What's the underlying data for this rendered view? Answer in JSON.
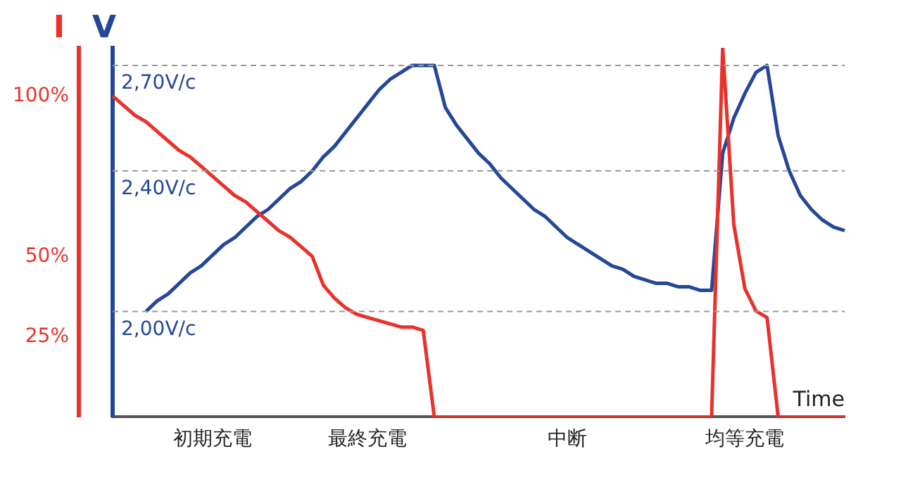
{
  "chart_data": {
    "type": "line",
    "xlabel": "Time",
    "ylabel": "I",
    "y2label": "V",
    "categories": [
      null,
      null,
      null,
      null,
      null,
      null,
      null,
      null,
      null,
      "初期充電",
      null,
      null,
      null,
      null,
      null,
      null,
      null,
      null,
      null,
      null,
      null,
      null,
      null,
      "最終充電",
      null,
      null,
      null,
      null,
      null,
      null,
      null,
      null,
      null,
      null,
      null,
      null,
      null,
      null,
      null,
      null,
      null,
      "中断",
      null,
      null,
      null,
      null,
      null,
      null,
      null,
      null,
      null,
      null,
      null,
      null,
      null,
      null,
      null,
      "均等充電",
      null,
      null,
      null,
      null,
      null,
      null,
      null,
      null,
      null
    ],
    "series": [
      {
        "color": "#e8322a",
        "values": [
          100,
          97,
          94,
          92,
          89,
          86,
          83,
          81,
          78,
          75,
          72,
          69,
          67,
          64,
          61,
          58,
          56,
          53,
          50,
          41,
          37,
          34,
          32,
          31,
          30,
          29,
          28,
          28,
          27,
          0,
          0,
          0,
          0,
          0,
          0,
          0,
          0,
          0,
          0,
          0,
          0,
          0,
          0,
          0,
          0,
          0,
          0,
          0,
          0,
          0,
          0,
          0,
          0,
          0,
          0,
          115,
          60,
          40,
          33,
          31,
          0,
          0,
          0,
          0,
          0,
          0,
          0
        ]
      },
      {
        "color": "#25479a",
        "axis": "y2",
        "values": [
          null,
          null,
          null,
          2.0,
          2.03,
          2.05,
          2.08,
          2.11,
          2.13,
          2.16,
          2.19,
          2.21,
          2.24,
          2.27,
          2.29,
          2.32,
          2.35,
          2.37,
          2.4,
          2.44,
          2.47,
          2.51,
          2.55,
          2.59,
          2.63,
          2.66,
          2.68,
          2.7,
          2.7,
          2.7,
          2.58,
          2.53,
          2.49,
          2.45,
          2.42,
          2.38,
          2.35,
          2.32,
          2.29,
          2.27,
          2.24,
          2.21,
          2.19,
          2.17,
          2.15,
          2.13,
          2.12,
          2.1,
          2.09,
          2.08,
          2.08,
          2.07,
          2.07,
          2.06,
          2.06,
          2.45,
          2.55,
          2.62,
          2.68,
          2.7,
          2.5,
          2.4,
          2.33,
          2.29,
          2.26,
          2.24,
          2.23
        ]
      }
    ],
    "ylim": [
      0,
      115
    ],
    "yticks": [
      {
        "value": 25,
        "label": "25%"
      },
      {
        "value": 50,
        "label": "50%"
      },
      {
        "value": 100,
        "label": "100%"
      }
    ],
    "y2lim": [
      1.7,
      2.75
    ],
    "y2ticks": [
      {
        "value": 2.0,
        "label": "2,00V/c"
      },
      {
        "value": 2.4,
        "label": "2,40V/c"
      },
      {
        "value": 2.7,
        "label": "2,70V/c"
      }
    ],
    "ref_lines": [
      {
        "axis": "y2",
        "value": 2.7,
        "color": "#999999",
        "line_style": "dashed"
      },
      {
        "axis": "y2",
        "value": 2.4,
        "color": "#999999",
        "line_style": "dashed"
      },
      {
        "axis": "y2",
        "value": 2.0,
        "color": "#999999",
        "line_style": "dashed"
      }
    ],
    "grid": false,
    "legend": false,
    "marker": "none",
    "line_style": "solid"
  }
}
